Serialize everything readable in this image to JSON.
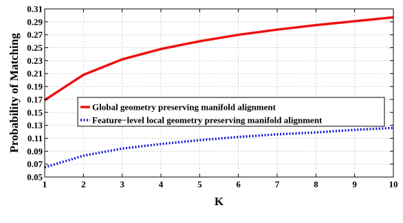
{
  "chart_data": {
    "type": "line",
    "xlabel": "K",
    "ylabel": "Probability of Matching",
    "xlim": [
      1,
      10
    ],
    "ylim": [
      0.05,
      0.31
    ],
    "x_ticks": [
      1,
      2,
      3,
      4,
      5,
      6,
      7,
      8,
      9,
      10
    ],
    "y_ticks": [
      "0.05",
      "0.07",
      "0.09",
      "0.11",
      "0.13",
      "0.15",
      "0.17",
      "0.19",
      "0.21",
      "0.23",
      "0.25",
      "0.27",
      "0.29",
      "0.31"
    ],
    "grid": true,
    "legend_position": "center-right",
    "x": [
      1,
      2,
      3,
      4,
      5,
      6,
      7,
      8,
      9,
      10
    ],
    "series": [
      {
        "name": "Global geometry preserving manifold alignment",
        "color": "#ee1111",
        "style": "solid",
        "values": [
          0.169,
          0.208,
          0.232,
          0.248,
          0.26,
          0.27,
          0.278,
          0.285,
          0.291,
          0.297
        ]
      },
      {
        "name": "Feature−level local geometry preserving manifold alignment",
        "color": "#1111dd",
        "style": "dotted",
        "values": [
          0.065,
          0.083,
          0.094,
          0.101,
          0.107,
          0.112,
          0.116,
          0.119,
          0.123,
          0.126
        ]
      }
    ]
  }
}
